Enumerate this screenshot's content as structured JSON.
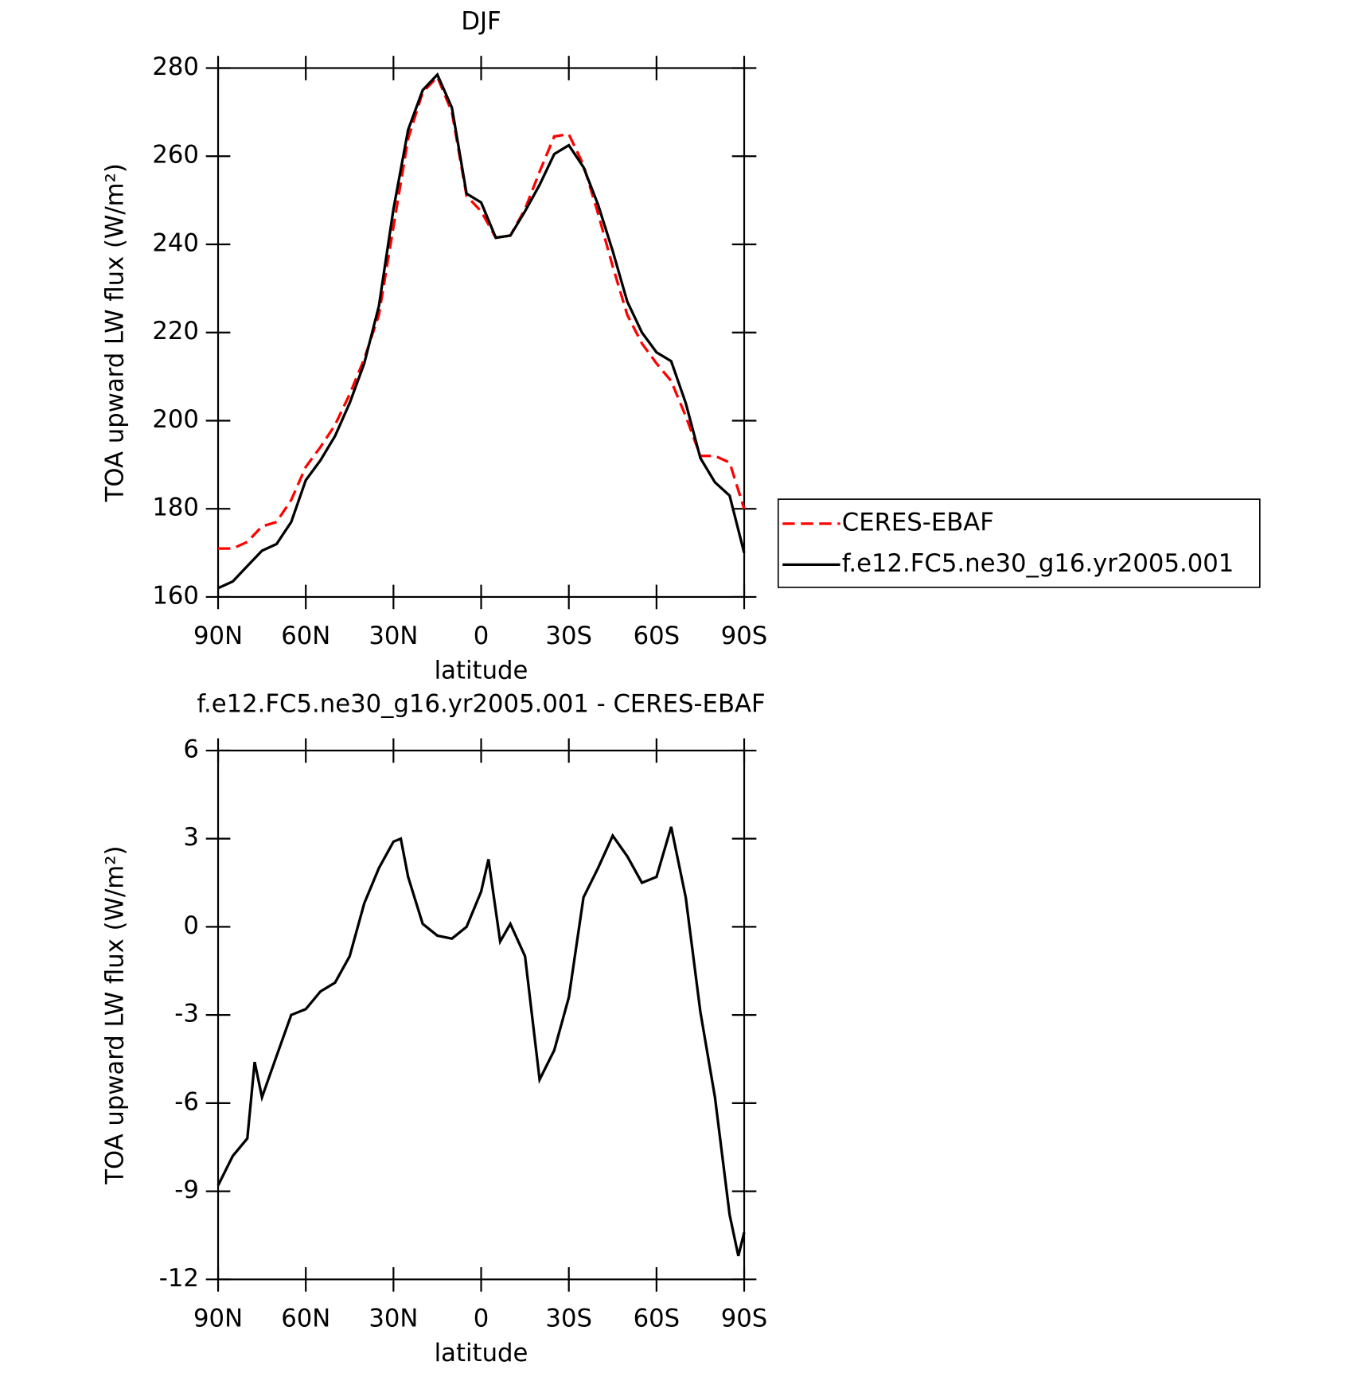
{
  "chart_data": [
    {
      "type": "line",
      "title": "DJF",
      "xlabel": "latitude",
      "ylabel": "TOA upward LW flux (W/m²)",
      "x": [
        90,
        85,
        80,
        75,
        70,
        65,
        60,
        55,
        50,
        45,
        40,
        35,
        30,
        25,
        20,
        15,
        10,
        5,
        0,
        -5,
        -10,
        -15,
        -20,
        -25,
        -30,
        -35,
        -40,
        -45,
        -50,
        -55,
        -60,
        -65,
        -70,
        -75,
        -80,
        -85,
        -90
      ],
      "xlim": [
        90,
        -90
      ],
      "xticks": [
        {
          "value": 90,
          "label": "90N"
        },
        {
          "value": 60,
          "label": "60N"
        },
        {
          "value": 30,
          "label": "30N"
        },
        0,
        {
          "value": -30,
          "label": "30S"
        },
        {
          "value": -60,
          "label": "60S"
        },
        {
          "value": -90,
          "label": "90S"
        }
      ],
      "ylim": [
        160,
        280
      ],
      "yticks": [
        160,
        180,
        200,
        220,
        240,
        260,
        280
      ],
      "legend": "outside-right",
      "series": [
        {
          "name": "CERES-EBAF",
          "color": "#ff0000",
          "linestyle": "dashed",
          "values": [
            171,
            171,
            172.5,
            176,
            177,
            182,
            189.5,
            194,
            199,
            206,
            214,
            224,
            244,
            264,
            274.5,
            278,
            270,
            251,
            247.5,
            241.5,
            242,
            248,
            256.5,
            264.5,
            265,
            258,
            247,
            235,
            224,
            217.5,
            213,
            209,
            201,
            192,
            192,
            190.5,
            180
          ]
        },
        {
          "name": "f.e12.FC5.ne30_g16.yr2005.001",
          "color": "#000000",
          "linestyle": "solid",
          "values": [
            162,
            163.5,
            167,
            170.5,
            172,
            177,
            186.5,
            191,
            196.5,
            204,
            213,
            226,
            248,
            266,
            275,
            278.5,
            271,
            251.5,
            249.5,
            241.5,
            242,
            247.5,
            253.5,
            260.5,
            262.5,
            257.5,
            249,
            238.5,
            227,
            220,
            215.5,
            213.5,
            204,
            191.5,
            186,
            183,
            170
          ]
        }
      ]
    },
    {
      "type": "line",
      "title": "f.e12.FC5.ne30_g16.yr2005.001 - CERES-EBAF",
      "xlabel": "latitude",
      "ylabel": "TOA upward LW flux (W/m²)",
      "x": [
        90,
        85,
        80,
        77.5,
        75,
        70,
        65,
        60,
        55,
        50,
        45,
        40,
        35,
        30,
        27.5,
        25,
        20,
        15,
        10,
        5,
        0,
        -2.5,
        -6.5,
        -10,
        -15,
        -20,
        -25,
        -30,
        -35,
        -40,
        -45,
        -50,
        -55,
        -60,
        -65,
        -70,
        -75,
        -80,
        -85,
        -88,
        -90
      ],
      "xlim": [
        90,
        -90
      ],
      "xticks": [
        {
          "value": 90,
          "label": "90N"
        },
        {
          "value": 60,
          "label": "60N"
        },
        {
          "value": 30,
          "label": "30N"
        },
        0,
        {
          "value": -30,
          "label": "30S"
        },
        {
          "value": -60,
          "label": "60S"
        },
        {
          "value": -90,
          "label": "90S"
        }
      ],
      "ylim": [
        -12,
        6
      ],
      "yticks": [
        -12,
        -9,
        -6,
        -3,
        0,
        3,
        6
      ],
      "series": [
        {
          "color": "#000000",
          "linestyle": "solid",
          "values": [
            -8.8,
            -7.8,
            -7.2,
            -4.6,
            -5.8,
            -4.4,
            -3.0,
            -2.8,
            -2.2,
            -1.9,
            -1.0,
            0.8,
            2.0,
            2.9,
            3.0,
            1.7,
            0.1,
            -0.3,
            -0.4,
            0.0,
            1.2,
            2.3,
            -0.5,
            0.1,
            -1.0,
            -5.2,
            -4.2,
            -2.4,
            1.0,
            2.0,
            3.1,
            2.4,
            1.5,
            1.7,
            3.4,
            1.0,
            -2.9,
            -5.8,
            -9.8,
            -11.2,
            -10.4
          ]
        }
      ]
    }
  ]
}
